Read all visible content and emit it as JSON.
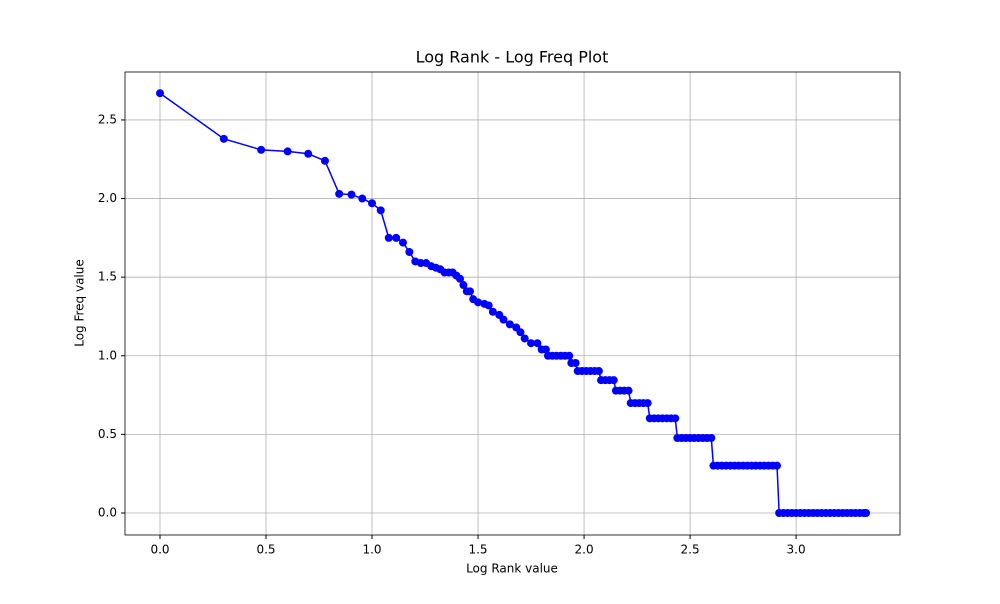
{
  "chart_data": {
    "type": "line",
    "title": "Log Rank - Log Freq  Plot",
    "x_label": "Log Rank value",
    "y_label": "Log Freq value",
    "xlim": [
      -0.165,
      3.49
    ],
    "ylim": [
      -0.14,
      2.805
    ],
    "xticks": [
      {
        "value": 0,
        "label": "0.0"
      },
      {
        "value": 0.5,
        "label": "0.5"
      },
      {
        "value": 1,
        "label": "1.0"
      },
      {
        "value": 1.5,
        "label": "1.5"
      },
      {
        "value": 2,
        "label": "2.0"
      },
      {
        "value": 2.5,
        "label": "2.5"
      },
      {
        "value": 3,
        "label": "3.0"
      }
    ],
    "yticks": [
      {
        "value": 0,
        "label": "0.0"
      },
      {
        "value": 0.5,
        "label": "0.5"
      },
      {
        "value": 1,
        "label": "1.0"
      },
      {
        "value": 1.5,
        "label": "1.5"
      },
      {
        "value": 2,
        "label": "2.0"
      },
      {
        "value": 2.5,
        "label": "2.5"
      }
    ],
    "grid": true,
    "color": "#0000ff",
    "x": [
      0,
      0.301,
      0.477,
      0.602,
      0.699,
      0.778,
      0.845,
      0.903,
      0.954,
      1.0,
      1.041,
      1.079,
      1.114,
      1.146,
      1.176,
      1.204,
      1.23,
      1.255,
      1.279,
      1.301,
      1.322,
      1.342,
      1.362,
      1.38,
      1.398,
      1.415,
      1.431,
      1.447,
      1.462,
      1.477,
      1.5,
      1.53,
      1.55,
      1.57,
      1.6,
      1.62,
      1.65,
      1.68,
      1.7,
      1.72,
      1.75,
      1.78,
      1.8,
      1.82,
      1.83,
      1.85,
      1.87,
      1.89,
      1.91,
      1.93,
      1.94,
      1.96,
      1.97,
      1.99,
      2.01,
      2.03,
      2.05,
      2.07,
      2.08,
      2.1,
      2.12,
      2.14,
      2.15,
      2.17,
      2.19,
      2.21,
      2.22,
      2.24,
      2.26,
      2.28,
      2.3,
      2.31,
      2.33,
      2.35,
      2.37,
      2.39,
      2.41,
      2.43,
      2.44,
      2.46,
      2.48,
      2.5,
      2.52,
      2.54,
      2.56,
      2.58,
      2.6,
      2.61,
      2.63,
      2.65,
      2.67,
      2.69,
      2.71,
      2.73,
      2.75,
      2.77,
      2.79,
      2.81,
      2.83,
      2.85,
      2.87,
      2.89,
      2.91,
      2.92,
      2.94,
      2.96,
      2.98,
      3.0,
      3.02,
      3.04,
      3.06,
      3.08,
      3.1,
      3.12,
      3.14,
      3.16,
      3.18,
      3.2,
      3.22,
      3.24,
      3.26,
      3.28,
      3.3,
      3.32,
      3.33
    ],
    "values": [
      2.67,
      2.38,
      2.31,
      2.3,
      2.285,
      2.24,
      2.03,
      2.025,
      2.0,
      1.97,
      1.925,
      1.75,
      1.75,
      1.72,
      1.66,
      1.6,
      1.59,
      1.59,
      1.57,
      1.56,
      1.55,
      1.53,
      1.53,
      1.53,
      1.51,
      1.49,
      1.45,
      1.41,
      1.41,
      1.36,
      1.34,
      1.33,
      1.32,
      1.28,
      1.26,
      1.23,
      1.2,
      1.18,
      1.15,
      1.11,
      1.08,
      1.08,
      1.04,
      1.04,
      1,
      1,
      1,
      1,
      1,
      1,
      0.954,
      0.954,
      0.903,
      0.903,
      0.903,
      0.903,
      0.903,
      0.903,
      0.845,
      0.845,
      0.845,
      0.845,
      0.778,
      0.778,
      0.778,
      0.778,
      0.699,
      0.699,
      0.699,
      0.699,
      0.699,
      0.602,
      0.602,
      0.602,
      0.602,
      0.602,
      0.602,
      0.602,
      0.477,
      0.477,
      0.477,
      0.477,
      0.477,
      0.477,
      0.477,
      0.477,
      0.477,
      0.301,
      0.301,
      0.301,
      0.301,
      0.301,
      0.301,
      0.301,
      0.301,
      0.301,
      0.301,
      0.301,
      0.301,
      0.301,
      0.301,
      0.301,
      0.301,
      0,
      0,
      0,
      0,
      0,
      0,
      0,
      0,
      0,
      0,
      0,
      0,
      0,
      0,
      0,
      0,
      0,
      0,
      0,
      0,
      0,
      0
    ]
  }
}
